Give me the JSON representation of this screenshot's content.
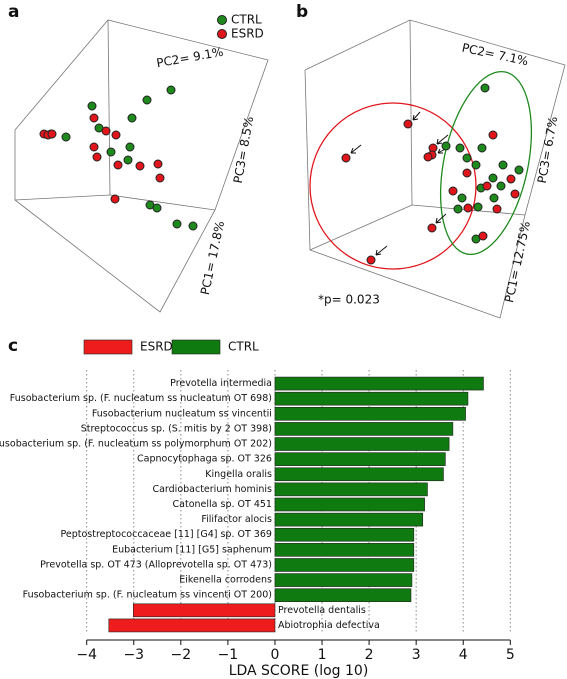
{
  "chart_data": [
    {
      "type": "scatter",
      "panel": "a",
      "xlim": [
        0,
        280
      ],
      "ylim": [
        300,
        0
      ],
      "axis_labels": [
        "PC2= 9.1%",
        "PC3= 8.5%",
        "PC1= 17.8%"
      ],
      "series": [
        {
          "name": "CTRL",
          "color": "#1e8a1e",
          "x": [
            92,
            147,
            171,
            132,
            99,
            66,
            51,
            111,
            130,
            128,
            150,
            157,
            177,
            193
          ],
          "y": [
            106,
            100,
            90,
            118,
            128,
            137,
            134,
            152,
            147,
            160,
            205,
            208,
            224,
            226
          ]
        },
        {
          "name": "ESRD",
          "color": "#e0161c",
          "x": [
            44,
            48,
            94,
            106,
            116,
            94,
            97,
            118,
            140,
            158,
            160,
            115,
            52
          ],
          "y": [
            134,
            135,
            118,
            131,
            135,
            147,
            157,
            165,
            166,
            164,
            178,
            199,
            134
          ]
        }
      ]
    },
    {
      "type": "scatter",
      "panel": "b",
      "xlim": [
        0,
        280
      ],
      "ylim": [
        300,
        0
      ],
      "axis_labels": [
        "PC2= 7.1%",
        "PC3= 6.7%",
        "PC1= 12.75%"
      ],
      "annotation": "*p= 0.023",
      "series": [
        {
          "name": "CTRL",
          "color": "#1e8a1e",
          "x": [
            198,
            159,
            173,
            180,
            195,
            189,
            216,
            232,
            206,
            194,
            214,
            207,
            191,
            175,
            189,
            171
          ],
          "y": [
            88,
            146,
            148,
            158,
            148,
            165,
            165,
            170,
            178,
            188,
            186,
            198,
            207,
            198,
            239,
            209
          ]
        },
        {
          "name": "ESRD",
          "color": "#e0161c",
          "x": [
            121,
            59,
            146,
            145,
            141,
            206,
            180,
            224,
            200,
            166,
            228,
            145,
            84,
            196,
            210,
            181
          ],
          "y": [
            124,
            158,
            148,
            155,
            157,
            135,
            173,
            179,
            186,
            191,
            194,
            228,
            260,
            236,
            209,
            208
          ]
        }
      ]
    },
    {
      "type": "barh",
      "panel": "c",
      "xlabel": "LDA SCORE (log 10)",
      "categories": [
        "Prevotella intermedia",
        "Fusobacterium sp. (F. nucleatum ss nucleatum OT 698)",
        "Fusobacterium nucleatum ss vincentii",
        "Streptococcus sp. (S. mitis by 2 OT 398)",
        "Fusobacterium sp. (F. nucleatum ss polymorphum OT 202)",
        "Capnocytophaga sp. OT 326",
        "Kingella oralis",
        "Cardiobacterium hominis",
        "Catonella sp. OT 451",
        "Filifactor alocis",
        "Peptostreptococcaceae [11] [G4] sp. OT 369",
        "Eubacterium [11] [G5] saphenum",
        "Prevotella sp. OT 473 (Alloprevotella sp. OT 473)",
        "Eikenella corrodens",
        "Fusobacterium sp. (F. nucleatum ss vincenti OT 200)",
        "Prevotella dentalis",
        "Abiotrophia defectiva"
      ],
      "series": [
        {
          "name": "ESRD",
          "color": "#ee1c1c",
          "values": [
            null,
            null,
            null,
            null,
            null,
            null,
            null,
            null,
            null,
            null,
            null,
            null,
            null,
            null,
            null,
            -3.01,
            -3.53
          ]
        },
        {
          "name": "CTRL",
          "color": "#0f7a0f",
          "values": [
            4.43,
            4.1,
            4.05,
            3.78,
            3.7,
            3.62,
            3.58,
            3.24,
            3.18,
            3.14,
            2.95,
            2.95,
            2.95,
            2.91,
            2.89,
            null,
            null
          ]
        }
      ],
      "xlim": [
        -4.1,
        5.1
      ],
      "xticks": [
        {
          "value": -4,
          "label": "−4"
        },
        {
          "value": -3,
          "label": "−3"
        },
        {
          "value": -2,
          "label": "−2"
        },
        {
          "value": -1,
          "label": "−1"
        },
        0,
        1,
        2,
        3,
        4,
        5
      ],
      "grid": true
    }
  ]
}
